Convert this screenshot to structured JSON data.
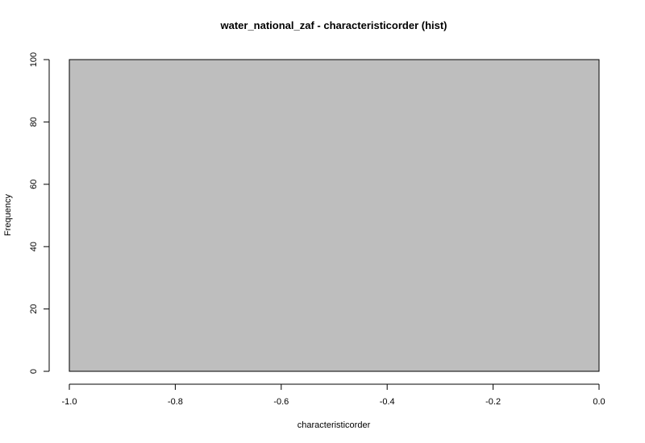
{
  "chart_data": {
    "type": "bar",
    "title": "water_national_zaf - characteristicorder (hist)",
    "xlabel": "characteristicorder",
    "ylabel": "Frequency",
    "xlim": [
      -1.0,
      0.0
    ],
    "ylim": [
      0,
      100
    ],
    "x_ticks": [
      "-1.0",
      "-0.8",
      "-0.6",
      "-0.4",
      "-0.2",
      "0.0"
    ],
    "y_ticks": [
      "0",
      "20",
      "40",
      "60",
      "80",
      "100"
    ],
    "bins": [
      {
        "start": -1.0,
        "end": 0.0,
        "count": 100
      }
    ],
    "bar_color": "#bebebe",
    "grid": false,
    "legend": "none"
  }
}
